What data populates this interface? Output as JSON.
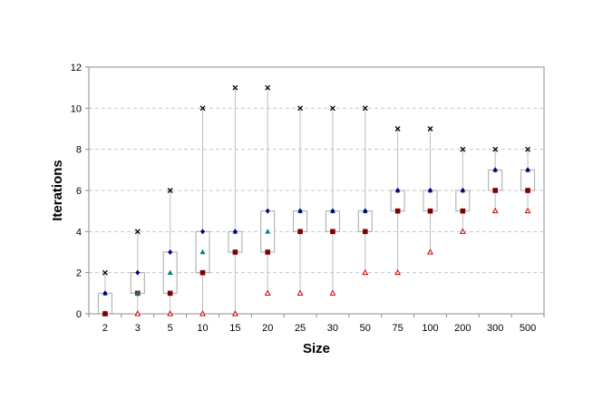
{
  "chart_data": {
    "type": "box",
    "xlabel": "Size",
    "ylabel": "Iterations",
    "ylim": [
      0,
      12
    ],
    "yticks": [
      0,
      2,
      4,
      6,
      8,
      10,
      12
    ],
    "grid": true,
    "categories": [
      "2",
      "3",
      "5",
      "10",
      "15",
      "20",
      "25",
      "30",
      "50",
      "75",
      "100",
      "200",
      "300",
      "500"
    ],
    "series": [
      {
        "marker": "cross",
        "color": "#000000",
        "role": "max",
        "values": [
          2,
          4,
          6,
          10,
          11,
          11,
          10,
          10,
          10,
          9,
          9,
          8,
          8,
          8
        ]
      },
      {
        "marker": "diamond",
        "color": "#000080",
        "role": "upper quartile",
        "values": [
          1,
          2,
          3,
          4,
          4,
          5,
          5,
          5,
          5,
          6,
          6,
          6,
          7,
          7
        ]
      },
      {
        "marker": "triangle",
        "color": "#008080",
        "role": "mean",
        "values": [
          1,
          1,
          2,
          3,
          4,
          4,
          5,
          5,
          5,
          6,
          6,
          6,
          7,
          7
        ]
      },
      {
        "marker": "square",
        "color": "#800000",
        "role": "median",
        "values": [
          0,
          1,
          1,
          2,
          3,
          3,
          4,
          4,
          4,
          5,
          5,
          5,
          6,
          6
        ]
      },
      {
        "marker": "triangle-open",
        "color": "#cc0000",
        "role": "min",
        "values": [
          0,
          0,
          0,
          0,
          0,
          1,
          1,
          1,
          2,
          2,
          3,
          4,
          5,
          5
        ]
      }
    ],
    "boxes": {
      "lower": [
        0,
        1,
        1,
        2,
        3,
        3,
        4,
        4,
        4,
        5,
        5,
        5,
        6,
        6
      ],
      "upper": [
        1,
        2,
        3,
        4,
        4,
        5,
        5,
        5,
        5,
        6,
        6,
        6,
        7,
        7
      ]
    }
  }
}
